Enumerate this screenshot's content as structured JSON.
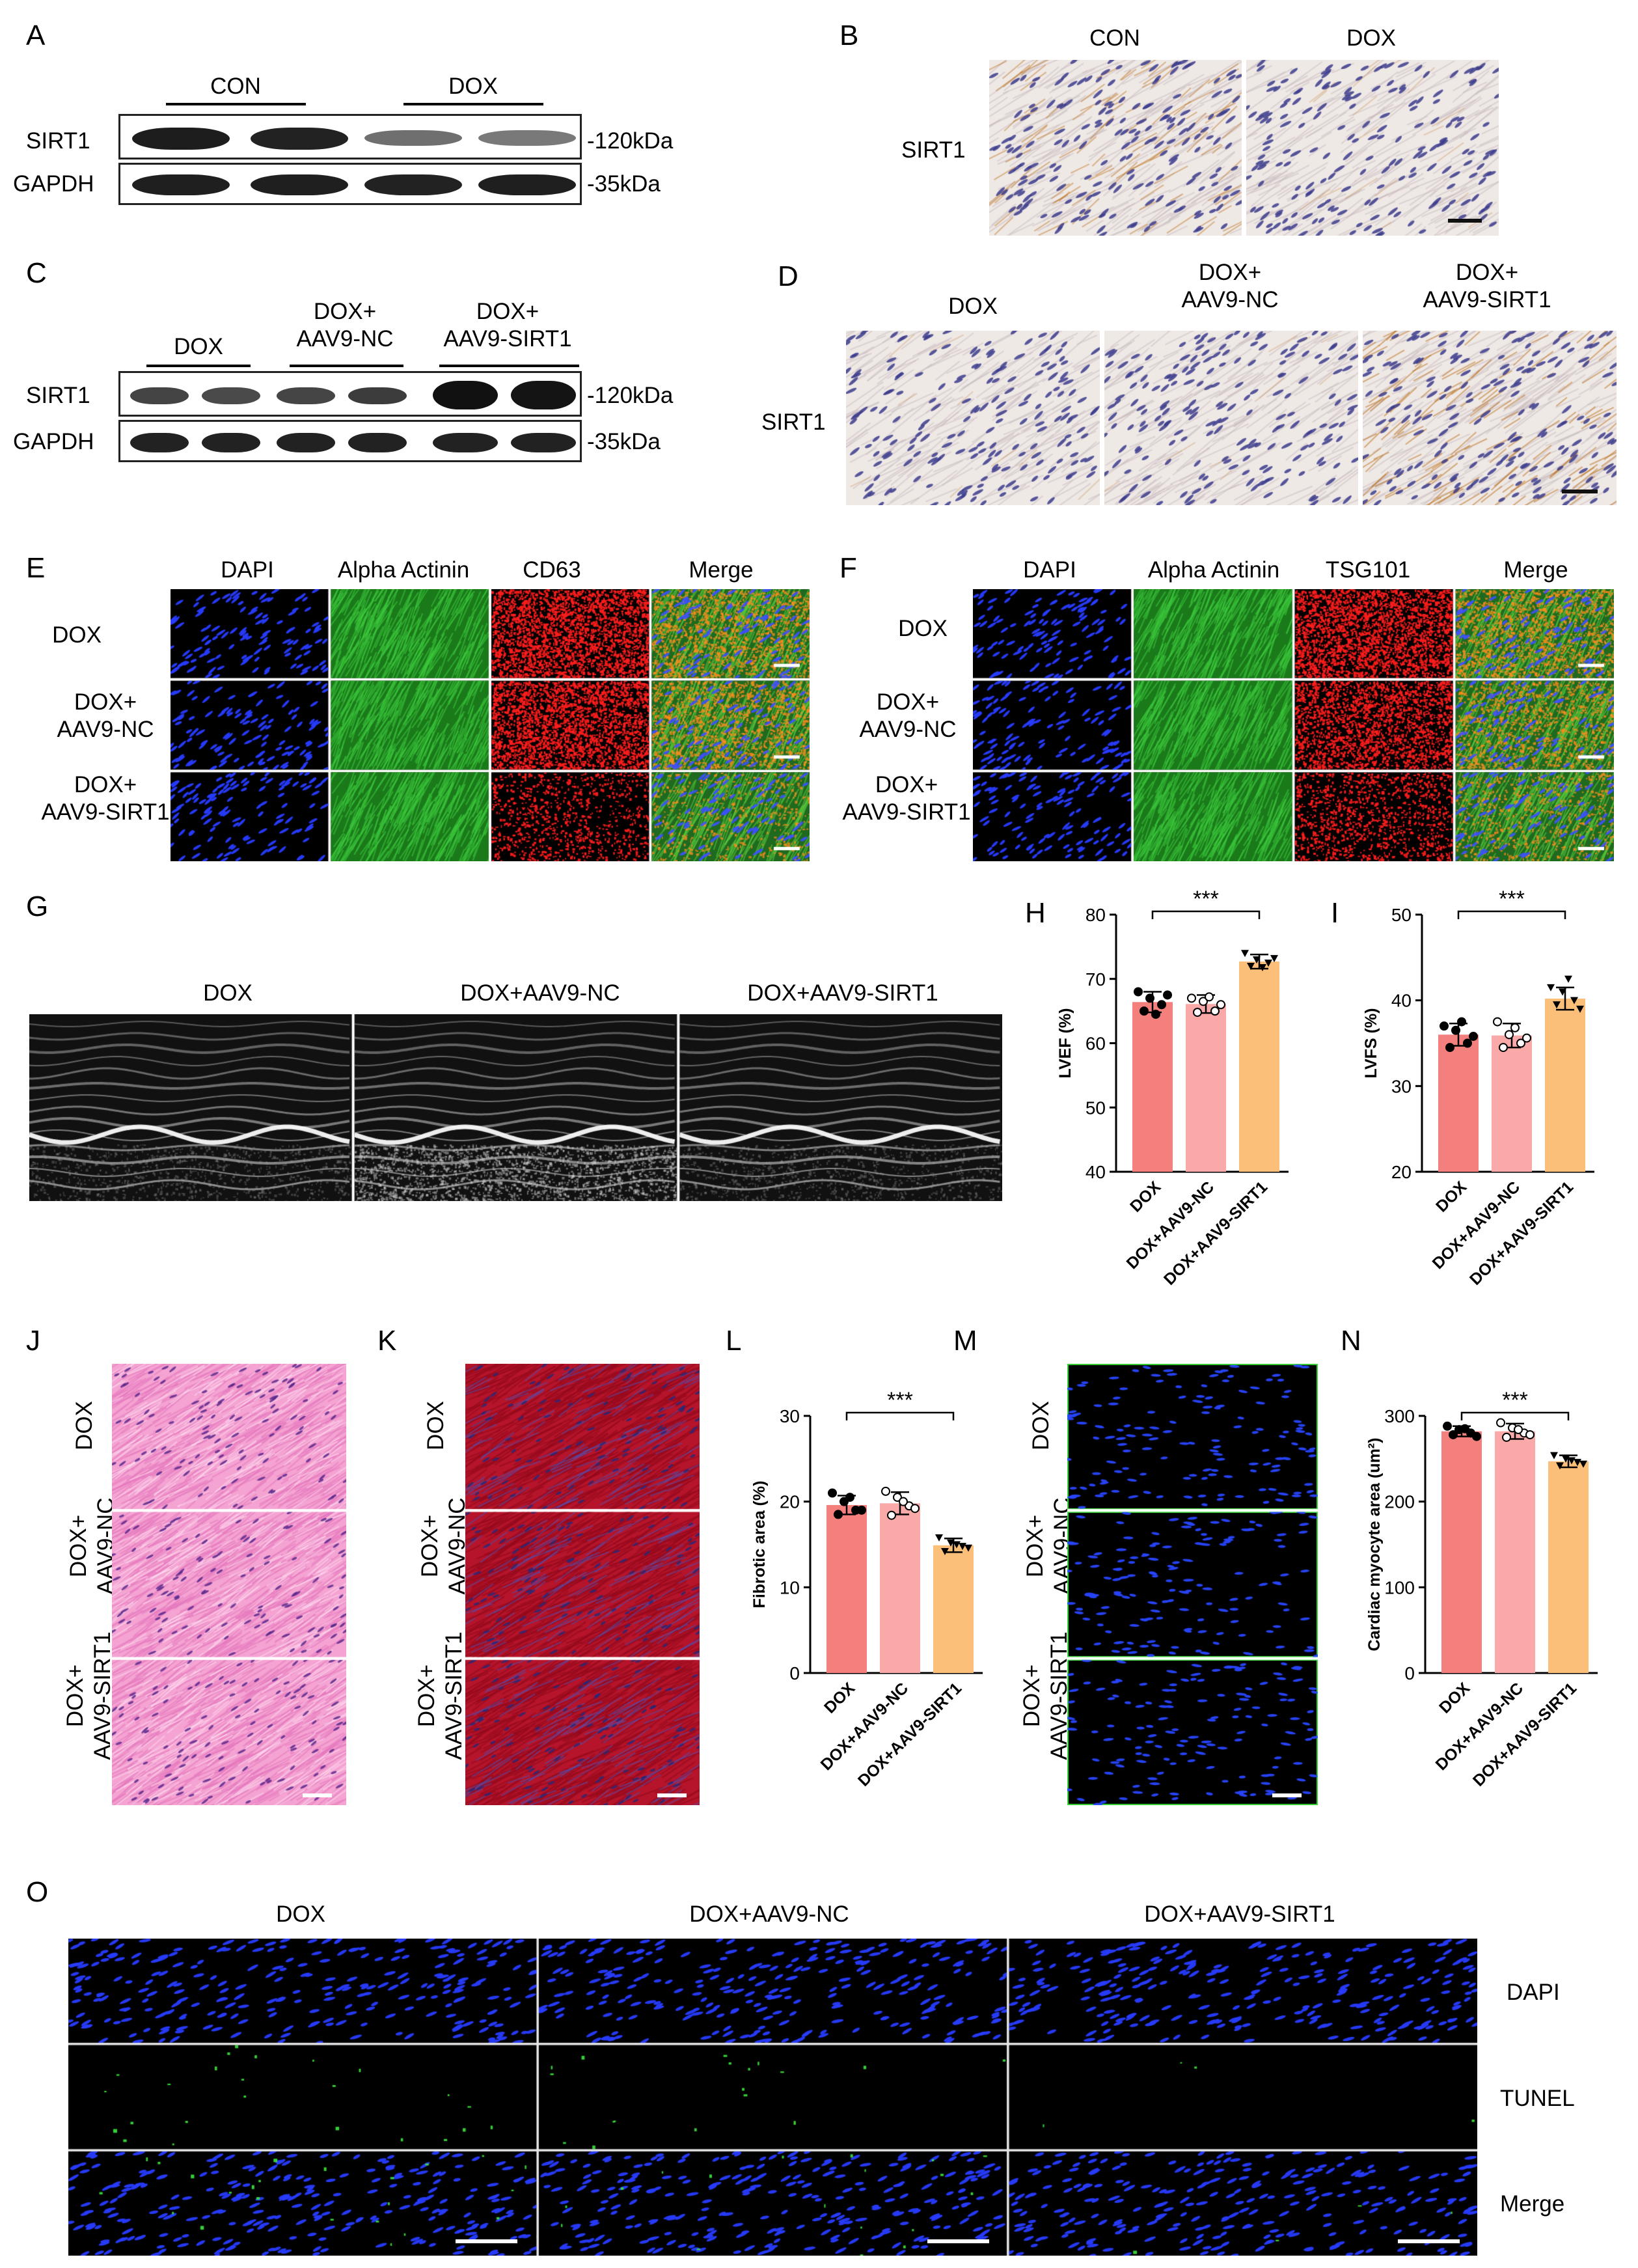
{
  "panels": {
    "A": {
      "letter": "A",
      "groups": [
        "CON",
        "DOX"
      ],
      "rows": [
        "SIRT1",
        "GAPDH"
      ],
      "markers": [
        "-120kDa",
        "-35kDa"
      ]
    },
    "B": {
      "letter": "B",
      "columns": [
        "CON",
        "DOX"
      ],
      "row_label": "SIRT1"
    },
    "C": {
      "letter": "C",
      "groups": [
        "DOX",
        "DOX+\nAAV9-NC",
        "DOX+\nAAV9-SIRT1"
      ],
      "rows": [
        "SIRT1",
        "GAPDH"
      ],
      "markers": [
        "-120kDa",
        "-35kDa"
      ]
    },
    "D": {
      "letter": "D",
      "columns": [
        "DOX",
        "DOX+\nAAV9-NC",
        "DOX+\nAAV9-SIRT1"
      ],
      "row_label": "SIRT1"
    },
    "E": {
      "letter": "E",
      "columns": [
        "DAPI",
        "Alpha Actinin",
        "CD63",
        "Merge"
      ],
      "rows": [
        "DOX",
        "DOX+\nAAV9-NC",
        "DOX+\nAAV9-SIRT1"
      ]
    },
    "F": {
      "letter": "F",
      "columns": [
        "DAPI",
        "Alpha Actinin",
        "TSG101",
        "Merge"
      ],
      "rows": [
        "DOX",
        "DOX+\nAAV9-NC",
        "DOX+\nAAV9-SIRT1"
      ]
    },
    "G": {
      "letter": "G",
      "columns": [
        "DOX",
        "DOX+AAV9-NC",
        "DOX+AAV9-SIRT1"
      ]
    },
    "J": {
      "letter": "J",
      "rows": [
        "DOX",
        "DOX+\nAAV9-NC",
        "DOX+\nAAV9-SIRT1"
      ]
    },
    "K": {
      "letter": "K",
      "rows": [
        "DOX",
        "DOX+\nAAV9-NC",
        "DOX+\nAAV9-SIRT1"
      ]
    },
    "M": {
      "letter": "M",
      "rows": [
        "DOX",
        "DOX+\nAAV9-NC",
        "DOX+\nAAV9-SIRT1"
      ]
    },
    "O": {
      "letter": "O",
      "columns": [
        "DOX",
        "DOX+AAV9-NC",
        "DOX+AAV9-SIRT1"
      ],
      "rows": [
        "DAPI",
        "TUNEL",
        "Merge"
      ]
    }
  },
  "chart_data": [
    {
      "id": "H",
      "letter": "H",
      "type": "bar",
      "categories": [
        "DOX",
        "DOX+AAV9-NC",
        "DOX+AAV9-SIRT1"
      ],
      "values": [
        66.4,
        66.1,
        72.7
      ],
      "errors": [
        1.6,
        1.4,
        1.1
      ],
      "points": [
        [
          68,
          67,
          66,
          65,
          64.5,
          67.5
        ],
        [
          67,
          66.5,
          65,
          64.8,
          67.2,
          66
        ],
        [
          74,
          73,
          72.5,
          72,
          71.8,
          73.2
        ]
      ],
      "ylabel": "LVEF (%)",
      "ylim": [
        40,
        80
      ],
      "yticks": [
        40,
        50,
        60,
        70,
        80
      ],
      "significance": {
        "from": 0,
        "to": 2,
        "label": "***"
      },
      "colors": [
        "#f4807d",
        "#f9aaa8",
        "#fbbf79"
      ]
    },
    {
      "id": "I",
      "letter": "I",
      "type": "bar",
      "categories": [
        "DOX",
        "DOX+AAV9-NC",
        "DOX+AAV9-SIRT1"
      ],
      "values": [
        36.0,
        35.9,
        40.2
      ],
      "errors": [
        1.3,
        1.4,
        1.3
      ],
      "points": [
        [
          37,
          36.5,
          35,
          34.5,
          37.5,
          35.8
        ],
        [
          37.5,
          36,
          35,
          34.5,
          36.8,
          35.6
        ],
        [
          41.5,
          41,
          40,
          39.5,
          42.5,
          39
        ]
      ],
      "ylabel": "LVFS (%)",
      "ylim": [
        20,
        50
      ],
      "yticks": [
        20,
        30,
        40,
        50
      ],
      "significance": {
        "from": 0,
        "to": 2,
        "label": "***"
      },
      "colors": [
        "#f4807d",
        "#f9aaa8",
        "#fbbf79"
      ]
    },
    {
      "id": "L",
      "letter": "L",
      "type": "bar",
      "categories": [
        "DOX",
        "DOX+AAV9-NC",
        "DOX+AAV9-SIRT1"
      ],
      "values": [
        19.6,
        19.8,
        14.9
      ],
      "errors": [
        1.1,
        1.3,
        0.8
      ],
      "points": [
        [
          21,
          20,
          19,
          18.5,
          20.5,
          19
        ],
        [
          21.2,
          20.5,
          19.5,
          18.4,
          20,
          19.2
        ],
        [
          15.8,
          15.2,
          14.8,
          14.2,
          15,
          14.6
        ]
      ],
      "ylabel": "Fibrotic area (%)",
      "ylim": [
        0,
        30
      ],
      "yticks": [
        0,
        10,
        20,
        30
      ],
      "significance": {
        "from": 0,
        "to": 2,
        "label": "***"
      },
      "colors": [
        "#f4807d",
        "#f9aaa8",
        "#fbbf79"
      ]
    },
    {
      "id": "N",
      "letter": "N",
      "type": "bar",
      "categories": [
        "DOX",
        "DOX+AAV9-NC",
        "DOX+AAV9-SIRT1"
      ],
      "values": [
        282,
        282,
        247
      ],
      "errors": [
        6,
        9,
        7
      ],
      "points": [
        [
          288,
          284,
          280,
          278,
          285,
          276
        ],
        [
          292,
          286,
          280,
          275,
          284,
          278
        ],
        [
          254,
          250,
          246,
          242,
          248,
          244
        ]
      ],
      "ylabel": "Cardiac myocyte area (um²)",
      "ylim": [
        0,
        300
      ],
      "yticks": [
        0,
        100,
        200,
        300
      ],
      "significance": {
        "from": 0,
        "to": 2,
        "label": "***"
      },
      "colors": [
        "#f4807d",
        "#f9aaa8",
        "#fbbf79"
      ]
    }
  ]
}
